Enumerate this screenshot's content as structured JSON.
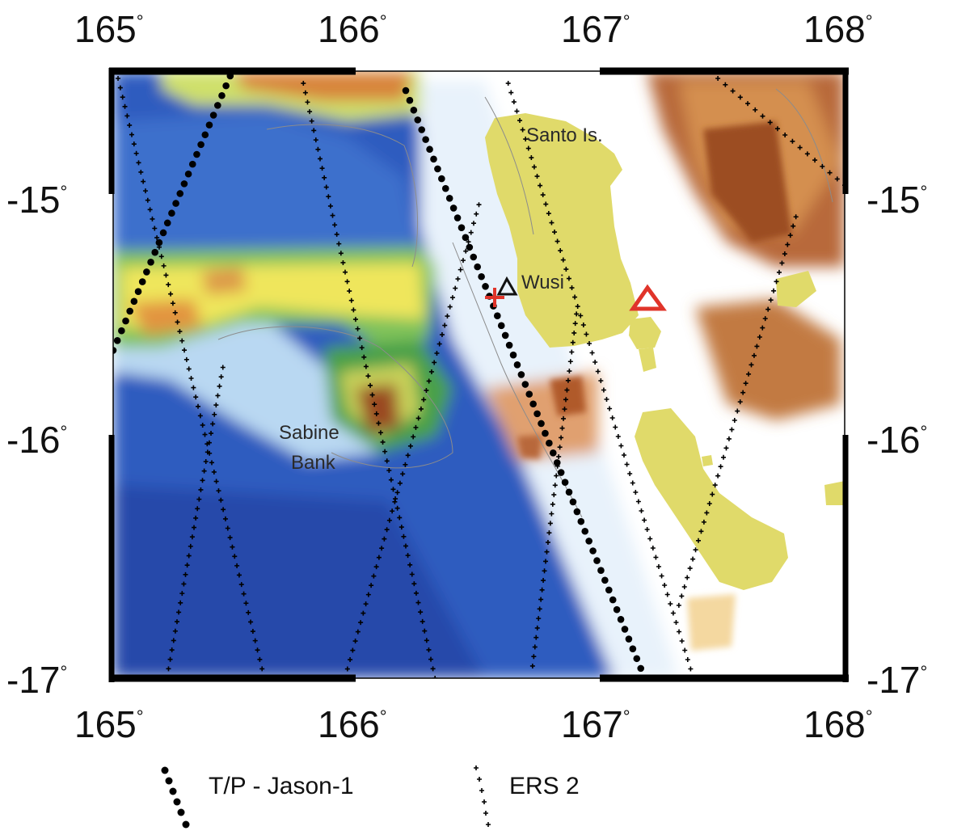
{
  "map": {
    "longitude_ticks": [
      "165",
      "166",
      "167",
      "168"
    ],
    "latitude_ticks": [
      "-15",
      "-16",
      "-17"
    ],
    "degree_symbol": "°",
    "extent": {
      "lon_min": 165,
      "lon_max": 168,
      "lat_top": -14.5,
      "lat_bottom": -17
    },
    "places": {
      "santo": "Santo Is.",
      "wusi": "Wusi",
      "sabine_line1": "Sabine",
      "sabine_line2": "Bank"
    },
    "colors": {
      "deep_sea": "#2a55b8",
      "mid_sea": "#6fa3dc",
      "shallow_sea": "#cde3f5",
      "anomaly_green": "#6bb04a",
      "anomaly_yellow": "#ece25a",
      "anomaly_orange": "#d98a3c",
      "anomaly_brown": "#a65a26",
      "land": "#e2dc6c",
      "tp_marker": "#000000",
      "ers_marker": "#000000",
      "wusi_triangle": "#111111",
      "red_triangle": "#e0342a",
      "red_cross": "#e0342a"
    },
    "tracks": {
      "tp": [
        {
          "from": [
            165.0,
            -15.65
          ],
          "to": [
            165.48,
            -14.52
          ]
        },
        {
          "from": [
            166.2,
            -14.58
          ],
          "to": [
            167.18,
            -17.0
          ]
        }
      ],
      "ers": [
        {
          "from": [
            165.02,
            -14.53
          ],
          "to": [
            165.62,
            -17.0
          ]
        },
        {
          "from": [
            165.78,
            -14.55
          ],
          "to": [
            166.32,
            -17.0
          ]
        },
        {
          "from": [
            166.62,
            -14.55
          ],
          "to": [
            167.38,
            -17.0
          ]
        },
        {
          "from": [
            167.48,
            -14.53
          ],
          "to": [
            168.0,
            -14.97
          ]
        },
        {
          "from": [
            165.22,
            -17.0
          ],
          "to": [
            165.45,
            -15.72
          ]
        },
        {
          "from": [
            165.95,
            -17.0
          ],
          "to": [
            166.5,
            -15.05
          ]
        },
        {
          "from": [
            166.72,
            -16.95
          ],
          "to": [
            166.9,
            -15.5
          ]
        },
        {
          "from": [
            167.32,
            -16.7
          ],
          "to": [
            167.8,
            -15.1
          ]
        }
      ]
    },
    "triangles": [
      {
        "name": "wusi",
        "lon": 166.6,
        "lat": -15.37
      },
      {
        "name": "red",
        "lon": 167.18,
        "lat": -15.43
      }
    ],
    "cross": {
      "lon": 166.56,
      "lat": -15.41
    }
  },
  "legend": {
    "tp_label": "T/P - Jason-1",
    "ers_label": "ERS 2"
  }
}
